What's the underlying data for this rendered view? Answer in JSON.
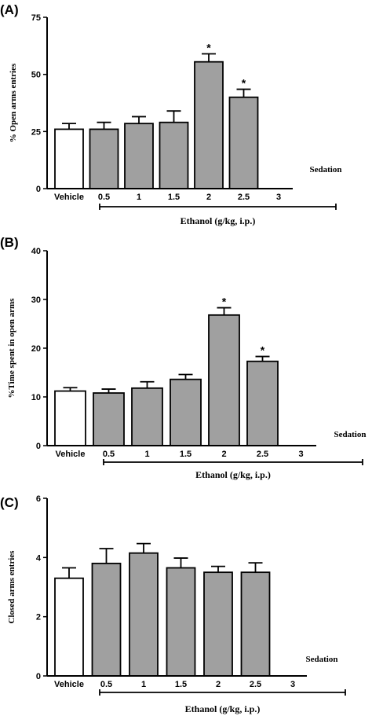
{
  "chart_data": [
    {
      "type": "bar",
      "panel_label": "(A)",
      "ylabel": "% Open arms entries",
      "xlabel": "Ethanol (g/kg, i.p.)",
      "categories": [
        "Vehicle",
        "0.5",
        "1",
        "1.5",
        "2",
        "2.5",
        "3"
      ],
      "values": [
        26,
        26,
        28.5,
        29,
        55.5,
        40,
        null
      ],
      "errors": [
        2.5,
        3,
        3,
        5,
        3.5,
        3.5,
        null
      ],
      "significant": [
        false,
        false,
        false,
        false,
        true,
        true,
        false
      ],
      "significance_mark": "*",
      "ylim": [
        0,
        75
      ],
      "yticks": [
        "0",
        "25",
        "50",
        "75"
      ],
      "note": "Sedation",
      "vehicle_color": "#ffffff",
      "bar_color": "#a0a0a0"
    },
    {
      "type": "bar",
      "panel_label": "(B)",
      "ylabel": "%Time spent in open arms",
      "xlabel": "Ethanol (g/kg, i.p.)",
      "categories": [
        "Vehicle",
        "0.5",
        "1",
        "1.5",
        "2",
        "2.5",
        "3"
      ],
      "values": [
        11.2,
        10.8,
        11.8,
        13.6,
        26.8,
        17.3,
        null
      ],
      "errors": [
        0.7,
        0.8,
        1.3,
        1.0,
        1.5,
        1.0,
        null
      ],
      "significant": [
        false,
        false,
        false,
        false,
        true,
        true,
        false
      ],
      "significance_mark": "*",
      "ylim": [
        0,
        40
      ],
      "yticks": [
        "0",
        "10",
        "20",
        "30",
        "40"
      ],
      "note": "Sedation",
      "vehicle_color": "#ffffff",
      "bar_color": "#a0a0a0"
    },
    {
      "type": "bar",
      "panel_label": "(C)",
      "ylabel": "Closed arms entries",
      "xlabel": "Ethanol (g/kg, i.p.)",
      "categories": [
        "Vehicle",
        "0.5",
        "1",
        "1.5",
        "2",
        "2.5",
        "3"
      ],
      "values": [
        3.3,
        3.8,
        4.15,
        3.65,
        3.5,
        3.5,
        null
      ],
      "errors": [
        0.35,
        0.5,
        0.32,
        0.33,
        0.2,
        0.32,
        null
      ],
      "significant": [
        false,
        false,
        false,
        false,
        false,
        false,
        false
      ],
      "significance_mark": "*",
      "ylim": [
        0,
        6
      ],
      "yticks": [
        "0",
        "2",
        "4",
        "6"
      ],
      "note": "Sedation",
      "vehicle_color": "#ffffff",
      "bar_color": "#a0a0a0"
    }
  ]
}
